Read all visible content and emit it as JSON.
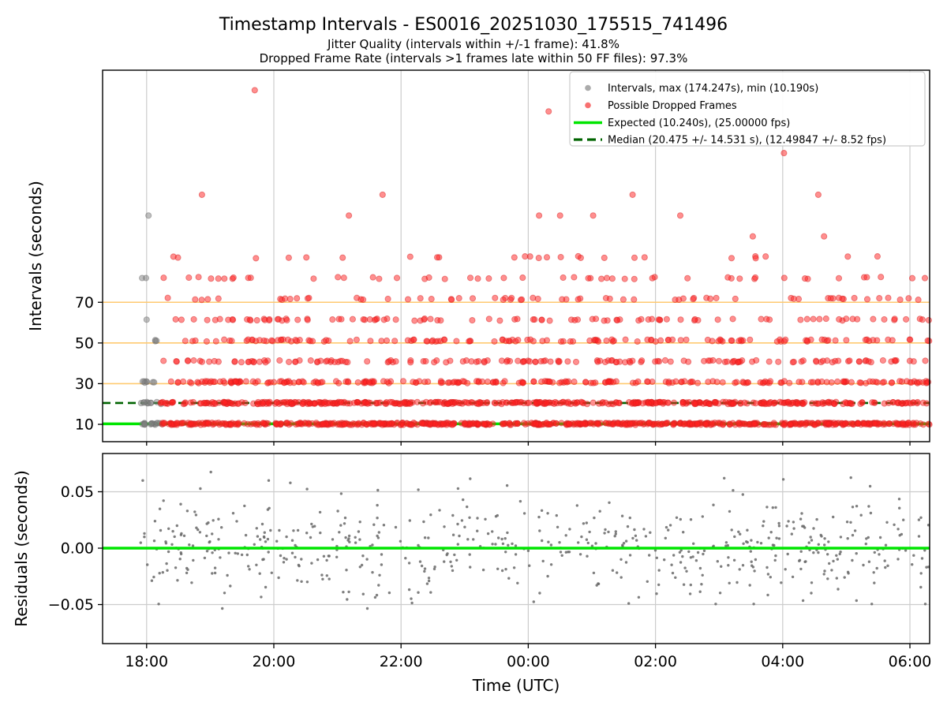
{
  "chart_data": {
    "type": "scatter",
    "title": "Timestamp Intervals - ES0016_20251030_175515_741496",
    "subtitle1": "Jitter Quality (intervals within +/-1 frame): 41.8%",
    "subtitle2": "Dropped Frame Rate (intervals >1 frames late within 50 FF files): 97.3%",
    "stats": {
      "jitter_quality_pct": 41.8,
      "dropped_frame_rate_pct": 97.3,
      "max_interval_s": 174.247,
      "min_interval_s": 10.19,
      "expected_interval_s": 10.24,
      "expected_fps": 25.0,
      "median_interval_s": 20.475,
      "median_interval_std_s": 14.531,
      "median_fps": 12.49847,
      "median_fps_std": 8.52
    },
    "x_axis": {
      "label": "Time (UTC)",
      "range_hours": [
        17.308,
        30.31
      ],
      "ticks": [
        {
          "hour": 18,
          "label": "18:00"
        },
        {
          "hour": 20,
          "label": "20:00"
        },
        {
          "hour": 22,
          "label": "22:00"
        },
        {
          "hour": 24,
          "label": "00:00"
        },
        {
          "hour": 26,
          "label": "02:00"
        },
        {
          "hour": 28,
          "label": "04:00"
        },
        {
          "hour": 30,
          "label": "06:00"
        }
      ],
      "gridline_color": "#cccccc"
    },
    "top": {
      "ylabel": "Intervals (seconds)",
      "ylim": [
        1.47,
        184.1
      ],
      "yticks": [
        {
          "value": 10,
          "label": "10"
        },
        {
          "value": 30,
          "label": "30"
        },
        {
          "value": 50,
          "label": "50"
        },
        {
          "value": 70,
          "label": "70"
        }
      ],
      "orange_gridlines": {
        "values": [
          30,
          50,
          70
        ],
        "color": "#ffca70"
      },
      "expected_line": {
        "value": 10.24,
        "color": "#00e500",
        "width": 3.4
      },
      "median_line": {
        "value": 20.475,
        "color": "#006400",
        "width": 2.6,
        "dash": "10 6"
      },
      "red_series": {
        "color": "#ff2020",
        "edge": "#d81f1f",
        "opacity": 0.5,
        "radius": 3.6,
        "t_range": [
          18.22,
          30.31
        ],
        "rows": [
          {
            "value": 10.24,
            "count": 640
          },
          {
            "value": 20.48,
            "count": 440
          },
          {
            "value": 30.72,
            "count": 230
          },
          {
            "value": 40.96,
            "count": 155
          },
          {
            "value": 51.2,
            "count": 135
          },
          {
            "value": 61.44,
            "count": 100
          },
          {
            "value": 71.68,
            "count": 65
          },
          {
            "value": 81.92,
            "count": 50
          },
          {
            "value": 92.16,
            "count": 26
          }
        ],
        "singles": [
          [
            19.7,
            174.25
          ],
          [
            24.32,
            163.84
          ],
          [
            28.02,
            143.36
          ],
          [
            18.87,
            122.88
          ],
          [
            21.71,
            122.88
          ],
          [
            25.64,
            122.88
          ],
          [
            28.56,
            122.88
          ],
          [
            21.18,
            112.64
          ],
          [
            24.17,
            112.64
          ],
          [
            24.5,
            112.64
          ],
          [
            25.02,
            112.64
          ],
          [
            26.39,
            112.64
          ],
          [
            27.53,
            102.4
          ],
          [
            28.65,
            102.4
          ]
        ]
      },
      "gray_series": {
        "color": "#808080",
        "edge": "#6e6e6e",
        "opacity": 0.5,
        "radius": 3.6,
        "rows": [
          {
            "value": 10.24,
            "count": 17,
            "t_range": [
              17.88,
              18.33
            ]
          },
          {
            "value": 20.48,
            "count": 10,
            "t_range": [
              17.9,
              18.28
            ]
          },
          {
            "value": 30.72,
            "count": 7,
            "t_range": [
              17.92,
              18.25
            ]
          },
          {
            "value": 51.2,
            "count": 3,
            "t_range": [
              18.12,
              18.19
            ]
          }
        ],
        "singles": [
          [
            17.93,
            81.92
          ],
          [
            17.99,
            81.92
          ],
          [
            18.0,
            61.44
          ],
          [
            18.03,
            112.64
          ]
        ]
      }
    },
    "bottom": {
      "ylabel": "Residuals (seconds)",
      "ylim": [
        -0.0846,
        0.0839
      ],
      "yticks": [
        {
          "value": 0.05,
          "label": "0.05"
        },
        {
          "value": 0.0,
          "label": "0.00"
        },
        {
          "value": -0.05,
          "label": "−0.05"
        }
      ],
      "gray_gridlines": {
        "values": [
          0.05,
          -0.05
        ],
        "color": "#cccccc"
      },
      "zero_line": {
        "value": 0,
        "color": "#00e500",
        "width": 3.4
      },
      "points": {
        "count": 580,
        "t_range": [
          17.9,
          30.3
        ],
        "mean": 0.0015,
        "sigma": 0.021,
        "clip": [
          -0.0495,
          0.0635
        ],
        "color": "#696969",
        "radius": 1.7,
        "opacity": 0.85
      },
      "outliers": [
        [
          19.01,
          0.0675
        ],
        [
          17.94,
          0.06
        ],
        [
          19.92,
          0.06
        ],
        [
          27.08,
          0.062
        ],
        [
          28.01,
          0.061
        ],
        [
          21.47,
          -0.0535
        ],
        [
          19.19,
          -0.0535
        ],
        [
          25.58,
          -0.049
        ],
        [
          28.32,
          -0.0465
        ],
        [
          29.16,
          -0.0465
        ]
      ]
    },
    "legend": [
      {
        "marker": "dot",
        "color": "#ababab",
        "label": "Intervals, max (174.247s), min (10.190s)"
      },
      {
        "marker": "dot",
        "color": "#f87070",
        "label": "Possible Dropped Frames"
      },
      {
        "marker": "line",
        "color": "#00e500",
        "label": "Expected (10.240s), (25.00000 fps)"
      },
      {
        "marker": "dashed-line",
        "color": "#006400",
        "label": "Median (20.475 +/- 14.531 s), (12.49847 +/- 8.52 fps)"
      }
    ]
  }
}
